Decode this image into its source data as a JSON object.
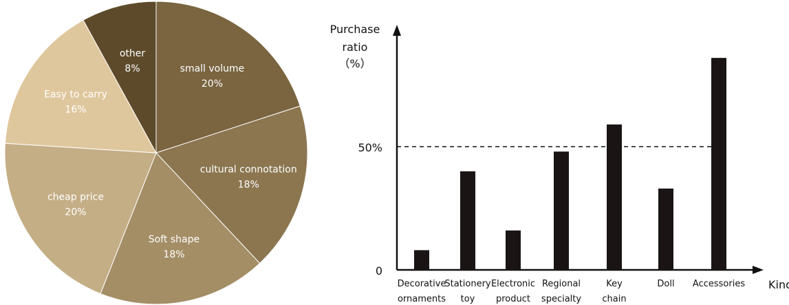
{
  "chart_data": [
    {
      "type": "pie",
      "slices": [
        {
          "label": "small volume",
          "value": 20,
          "value_label": "20%",
          "color": "#7a6540"
        },
        {
          "label": "cultural connotation",
          "value": 18,
          "value_label": "18%",
          "color": "#8b7650"
        },
        {
          "label": "Soft shape",
          "value": 18,
          "value_label": "18%",
          "color": "#a48e66"
        },
        {
          "label": "cheap price",
          "value": 20,
          "value_label": "20%",
          "color": "#c4ae86"
        },
        {
          "label": "Easy to carry",
          "value": 16,
          "value_label": "16%",
          "color": "#dfc79d"
        },
        {
          "label": "other",
          "value": 8,
          "value_label": "8%",
          "color": "#5d4a2a"
        }
      ]
    },
    {
      "type": "bar",
      "ylabel_lines": [
        "Purchase",
        "ratio",
        "（%）"
      ],
      "xlabel": "Kind",
      "categories": [
        [
          "Decorative",
          "ornaments"
        ],
        [
          "Stationery",
          "toy"
        ],
        [
          "Electronic",
          "product"
        ],
        [
          "Regional",
          "specialty"
        ],
        [
          "Key",
          "chain"
        ],
        [
          "Doll"
        ],
        [
          "Accessories"
        ]
      ],
      "values": [
        8,
        40,
        16,
        48,
        59,
        33,
        86
      ],
      "ylim": [
        0,
        100
      ],
      "yticks": [
        {
          "value": 0,
          "label": "0"
        },
        {
          "value": 50,
          "label": "50%"
        }
      ],
      "reference_line": {
        "value": 50,
        "style": "dashed"
      },
      "bar_color": "#1a1414"
    }
  ]
}
